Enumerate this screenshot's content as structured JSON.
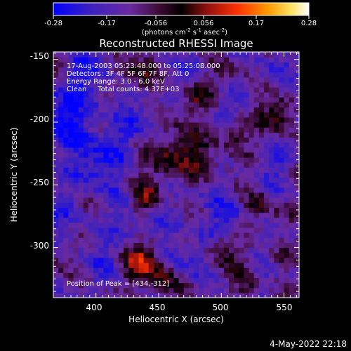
{
  "colorbar": {
    "ticks": [
      "-0.28",
      "-0.17",
      "-0.056",
      "0.056",
      "0.17",
      "0.28"
    ],
    "unit_pre": "(photons cm",
    "unit_sup1": "-2",
    "unit_mid": " s",
    "unit_sup2": "-1",
    "unit_mid2": " asec",
    "unit_sup3": "-2",
    "unit_post": ")"
  },
  "annotations": {
    "time_range": "17-Aug-2003 05:23:48.000 to 05:25:08.000",
    "detectors": "Detectors: 3F 4F 5F 6F 7F 8F, Att 0",
    "energy_range": "Energy Range: 3.0 - 6.0 keV",
    "clean_counts": "Clean     Total counts: 4.37E+03",
    "peak_position": "Position of Peak = [434,-312]"
  },
  "footer": {
    "timestamp": "4-May-2022 22:18"
  },
  "chart_data": {
    "type": "heatmap",
    "title": "Reconstructed RHESSI Image",
    "xlabel": "Heliocentric X (arcsec)",
    "ylabel": "Heliocentric Y (arcsec)",
    "x_ticks": [
      400,
      450,
      500,
      550
    ],
    "y_ticks": [
      -150,
      -200,
      -250,
      -300
    ],
    "xlim": [
      366,
      562
    ],
    "ylim": [
      -340,
      -144
    ],
    "color_range": [
      -0.28,
      0.28
    ],
    "colormap": [
      "#0000ff",
      "#6a2aa0",
      "#5a1a40",
      "#000000",
      "#a01010",
      "#ff4000",
      "#ffa000",
      "#ffff80",
      "#ffffff"
    ],
    "peak": [
      434,
      -312
    ]
  }
}
